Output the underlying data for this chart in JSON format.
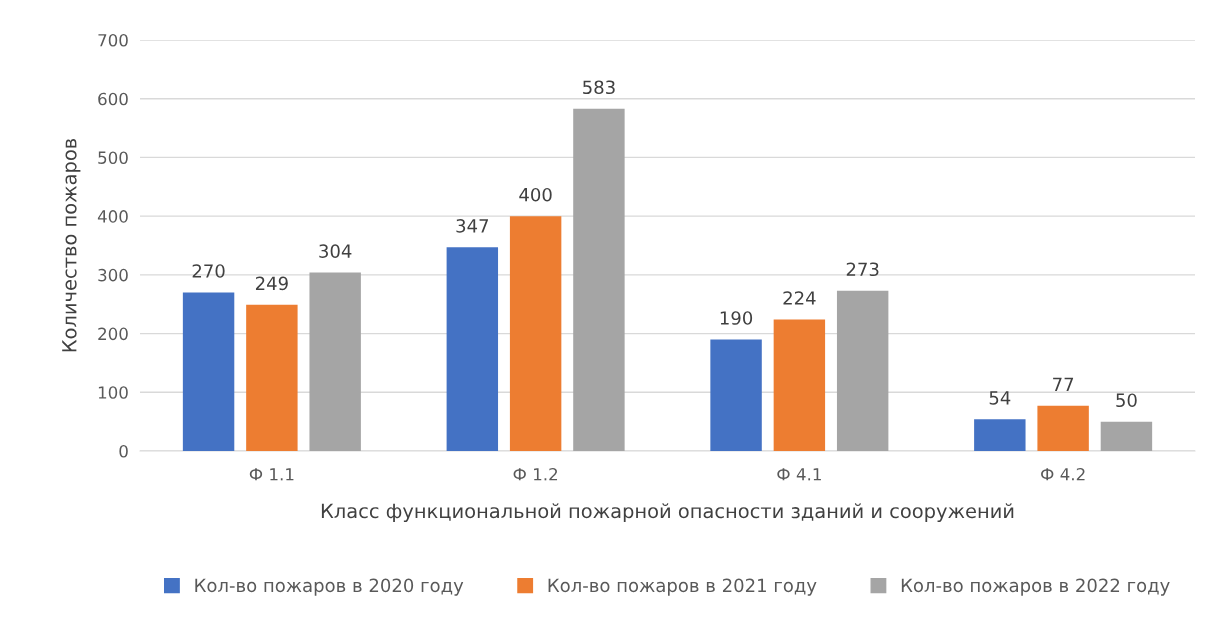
{
  "chart_data": {
    "type": "bar",
    "xlabel": "Класс функциональной пожарной опасности зданий и сооружений",
    "ylabel": "Количество пожаров",
    "categories": [
      "Ф 1.1",
      "Ф 1.2",
      "Ф 4.1",
      "Ф 4.2"
    ],
    "series": [
      {
        "name": "Кол-во пожаров в 2020 году",
        "color": "#4472c4",
        "values": [
          270,
          347,
          190,
          54
        ]
      },
      {
        "name": "Кол-во пожаров в 2021 году",
        "color": "#ed7d31",
        "values": [
          249,
          400,
          224,
          77
        ]
      },
      {
        "name": "Кол-во пожаров в 2022 году",
        "color": "#a5a5a5",
        "values": [
          304,
          583,
          273,
          50
        ]
      }
    ],
    "ylim": [
      0,
      700
    ],
    "yticks": [
      0,
      100,
      200,
      300,
      400,
      500,
      600,
      700
    ],
    "grid": "y",
    "legend": "bottom",
    "data_labels": true
  }
}
